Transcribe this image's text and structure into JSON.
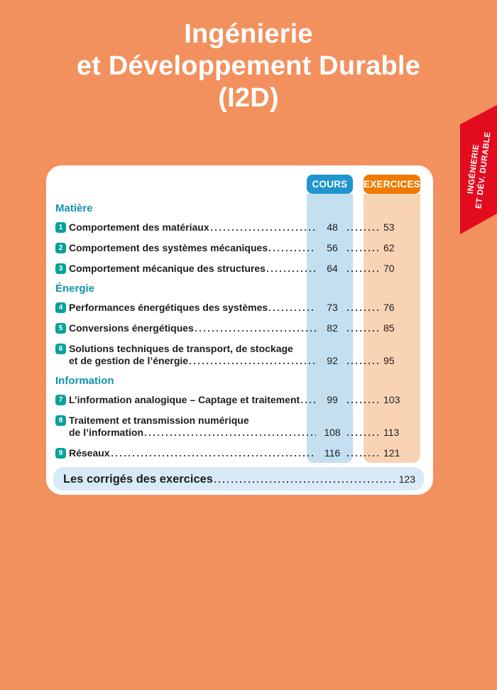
{
  "header": {
    "title_lines": [
      "Ingénierie",
      "et Développement Durable",
      "(I2D)"
    ]
  },
  "side_tab": {
    "lines": [
      "INGÉNIERIE",
      "ET DÉV. DURABLE"
    ]
  },
  "toc": {
    "column_headers": [
      {
        "label": "COURS"
      },
      {
        "label": "EXERCICES"
      }
    ],
    "sections": [
      {
        "title": "Matière",
        "items": [
          {
            "num": "1",
            "title_lines": [
              "Comportement des matériaux"
            ],
            "cours": "48",
            "exercices": "53"
          },
          {
            "num": "2",
            "title_lines": [
              "Comportement des systèmes mécaniques"
            ],
            "cours": "56",
            "exercices": "62"
          },
          {
            "num": "3",
            "title_lines": [
              "Comportement mécanique des structures"
            ],
            "cours": "64",
            "exercices": "70"
          }
        ]
      },
      {
        "title": "Énergie",
        "items": [
          {
            "num": "4",
            "title_lines": [
              "Performances énergétiques des systèmes"
            ],
            "cours": "73",
            "exercices": "76"
          },
          {
            "num": "5",
            "title_lines": [
              "Conversions énergétiques"
            ],
            "cours": "82",
            "exercices": "85"
          },
          {
            "num": "6",
            "title_lines": [
              "Solutions techniques de transport, de stockage",
              "et de gestion de l’énergie"
            ],
            "cours": "92",
            "exercices": "95"
          }
        ]
      },
      {
        "title": "Information",
        "items": [
          {
            "num": "7",
            "title_lines": [
              "L’information analogique – Captage et traitement"
            ],
            "cours": "99",
            "exercices": "103"
          },
          {
            "num": "8",
            "title_lines": [
              "Traitement et transmission numérique",
              "de l’information"
            ],
            "cours": "108",
            "exercices": "113"
          },
          {
            "num": "9",
            "title_lines": [
              "Réseaux"
            ],
            "cours": "116",
            "exercices": "121"
          }
        ]
      }
    ],
    "footer": {
      "label": "Les corrigés des exercices",
      "page": "123"
    }
  },
  "colors": {
    "background": "#F2915E",
    "tab_red": "#E30B1E",
    "cours_blue": "#2095CE",
    "cours_column": "#C3DFF0",
    "exercices_orange": "#EE7B00",
    "exercices_column": "#F8D4B5",
    "badge_teal": "#0AA19A",
    "section_teal": "#1294AC",
    "footer_bar": "#D9EAF7"
  }
}
